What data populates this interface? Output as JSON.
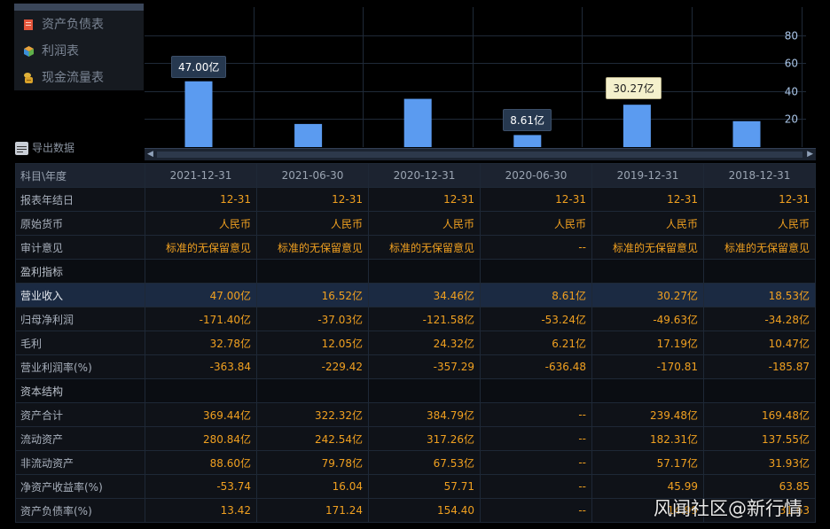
{
  "sidebar": {
    "items": [
      {
        "label": "资产负债表",
        "icon": "balance-sheet-icon"
      },
      {
        "label": "利润表",
        "icon": "income-statement-icon"
      },
      {
        "label": "现金流量表",
        "icon": "cash-flow-icon"
      }
    ],
    "export_label": "导出数据"
  },
  "chart_data": {
    "type": "bar",
    "categories": [
      "2021-12-31",
      "2021-06-30",
      "2020-12-31",
      "2020-06-30",
      "2019-12-31",
      "2018-12-31"
    ],
    "values": [
      47.0,
      16.52,
      34.46,
      8.61,
      30.27,
      18.53
    ],
    "y_ticks": [
      20,
      40,
      60,
      80
    ],
    "ylim": [
      0,
      100
    ],
    "grid": true,
    "data_labels": [
      {
        "category": "2021-12-31",
        "text": "47.00亿",
        "style": "dark"
      },
      {
        "category": "2020-06-30",
        "text": "8.61亿",
        "style": "dark"
      },
      {
        "category": "2019-12-31",
        "text": "30.27亿",
        "style": "light"
      }
    ],
    "colors": {
      "bar": "#5b9bf0",
      "grid": "#1f2a38",
      "tick": "#a9c4e6"
    }
  },
  "table": {
    "header_first": "科目\\年度",
    "columns": [
      "2021-12-31",
      "2021-06-30",
      "2020-12-31",
      "2020-06-30",
      "2019-12-31",
      "2018-12-31"
    ],
    "rows": [
      {
        "name": "报表年结日",
        "values": [
          "12-31",
          "12-31",
          "12-31",
          "12-31",
          "12-31",
          "12-31"
        ]
      },
      {
        "name": "原始货币",
        "values": [
          "人民币",
          "人民币",
          "人民币",
          "人民币",
          "人民币",
          "人民币"
        ]
      },
      {
        "name": "审计意见",
        "values": [
          "标准的无保留意见",
          "标准的无保留意见",
          "标准的无保留意见",
          "--",
          "标准的无保留意见",
          "标准的无保留意见"
        ]
      },
      {
        "name": "盈利指标",
        "section": true,
        "values": [
          "",
          "",
          "",
          "",
          "",
          ""
        ]
      },
      {
        "name": "营业收入",
        "highlight": true,
        "values": [
          "47.00亿",
          "16.52亿",
          "34.46亿",
          "8.61亿",
          "30.27亿",
          "18.53亿"
        ]
      },
      {
        "name": "归母净利润",
        "values": [
          "-171.40亿",
          "-37.03亿",
          "-121.58亿",
          "-53.24亿",
          "-49.63亿",
          "-34.28亿"
        ]
      },
      {
        "name": "毛利",
        "values": [
          "32.78亿",
          "12.05亿",
          "24.32亿",
          "6.21亿",
          "17.19亿",
          "10.47亿"
        ]
      },
      {
        "name": "营业利润率(%)",
        "values": [
          "-363.84",
          "-229.42",
          "-357.29",
          "-636.48",
          "-170.81",
          "-185.87"
        ]
      },
      {
        "name": "资本结构",
        "section": true,
        "values": [
          "",
          "",
          "",
          "",
          "",
          ""
        ]
      },
      {
        "name": "资产合计",
        "values": [
          "369.44亿",
          "322.32亿",
          "384.79亿",
          "--",
          "239.48亿",
          "169.48亿"
        ]
      },
      {
        "name": "流动资产",
        "values": [
          "280.84亿",
          "242.54亿",
          "317.26亿",
          "--",
          "182.31亿",
          "137.55亿"
        ]
      },
      {
        "name": "非流动资产",
        "values": [
          "88.60亿",
          "79.78亿",
          "67.53亿",
          "--",
          "57.17亿",
          "31.93亿"
        ]
      },
      {
        "name": "净资产收益率(%)",
        "values": [
          "-53.74",
          "16.04",
          "57.71",
          "--",
          "45.99",
          "63.85"
        ]
      },
      {
        "name": "资产负债率(%)",
        "values": [
          "13.42",
          "171.24",
          "154.40",
          "--",
          "14.99",
          "31.63"
        ]
      }
    ]
  },
  "watermark": "风闻社区@新行情"
}
